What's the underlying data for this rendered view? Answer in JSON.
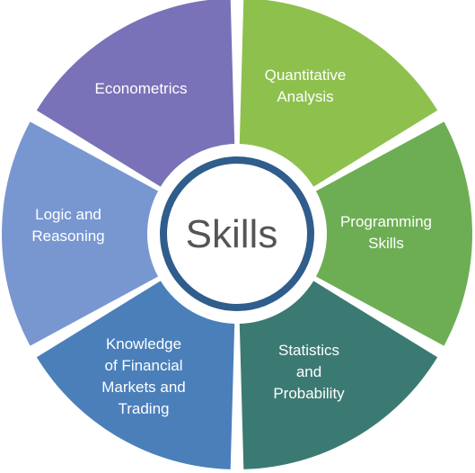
{
  "center": {
    "label": "Skills",
    "ring_color": "#2f5d8c",
    "text_color": "#555555"
  },
  "segments": [
    {
      "label_lines": [
        "Quantitative",
        "Analysis"
      ],
      "color": "#8ec04e"
    },
    {
      "label_lines": [
        "Programming",
        "Skills"
      ],
      "color": "#6dae55"
    },
    {
      "label_lines": [
        "Statistics",
        "and",
        "Probability"
      ],
      "color": "#3b7a72"
    },
    {
      "label_lines": [
        "Knowledge",
        "of Financial",
        "Markets and",
        "Trading"
      ],
      "color": "#4a7fba"
    },
    {
      "label_lines": [
        "Logic and",
        "Reasoning"
      ],
      "color": "#7897d1"
    },
    {
      "label_lines": [
        "Econometrics"
      ],
      "color": "#7a72b8"
    }
  ]
}
